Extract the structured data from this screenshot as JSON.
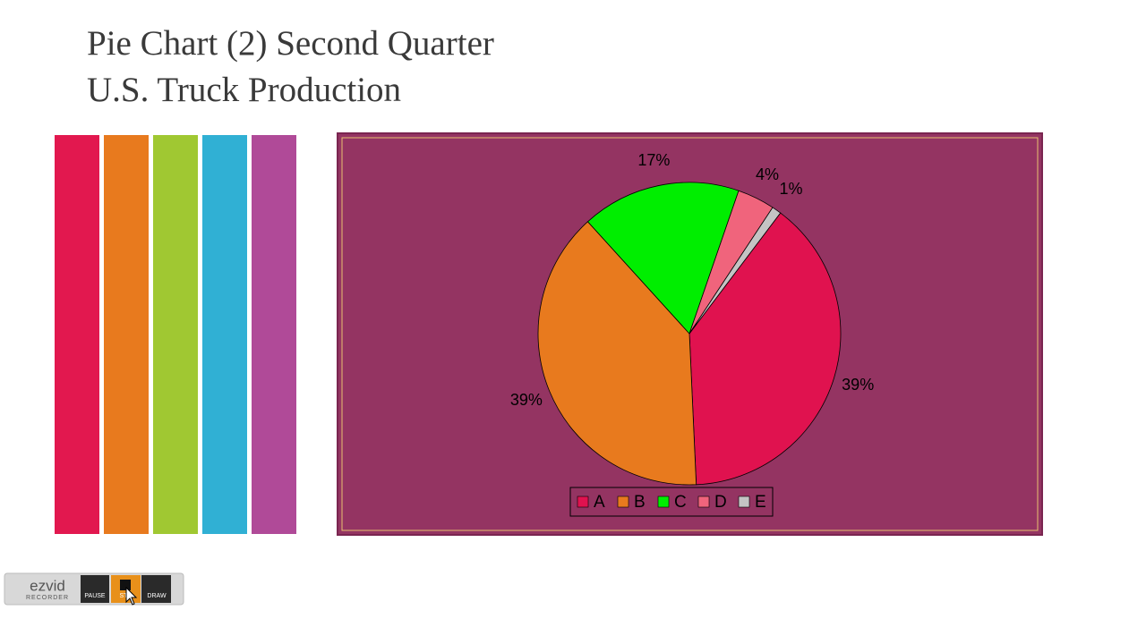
{
  "slide": {
    "title_lines": [
      "Pie Chart (2) Second Quarter",
      "U.S. Truck Production"
    ]
  },
  "chart_data": {
    "type": "pie",
    "categories": [
      "A",
      "B",
      "C",
      "D",
      "E"
    ],
    "values": [
      39,
      39,
      17,
      4,
      1
    ],
    "value_labels": [
      "39%",
      "39%",
      "17%",
      "4%",
      "1%"
    ],
    "colors": [
      "#e0124f",
      "#e87a1e",
      "#00ee00",
      "#f0647c",
      "#c4c4c4"
    ],
    "legend": "bottom"
  },
  "toolbar": {
    "logo": "ezvid",
    "logo_sub": "RECORDER",
    "buttons": [
      "PAUSE",
      "ST",
      "DRAW"
    ]
  }
}
